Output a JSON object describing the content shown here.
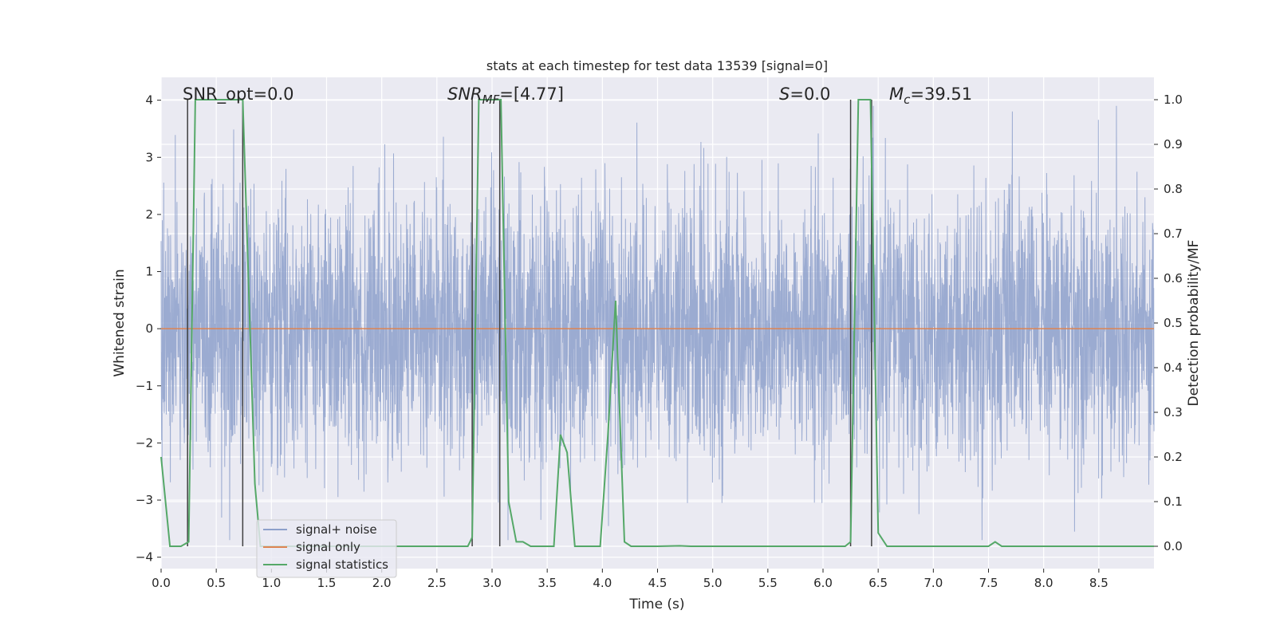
{
  "chart_data": {
    "type": "line",
    "title": "stats at each timestep for test data 13539 [signal=0]",
    "xlabel": "Time (s)",
    "ylabel_left": "Whitened strain",
    "ylabel_right": "Detection probability/MF",
    "xlim": [
      0.0,
      9.0
    ],
    "ylim_left": [
      -4.2,
      4.4
    ],
    "ylim_right": [
      -0.05,
      1.05
    ],
    "x_ticks": [
      "0.0",
      "0.5",
      "1.0",
      "1.5",
      "2.0",
      "2.5",
      "3.0",
      "3.5",
      "4.0",
      "4.5",
      "5.0",
      "5.5",
      "6.0",
      "6.5",
      "7.0",
      "7.5",
      "8.0",
      "8.5"
    ],
    "y_ticks_left": [
      "4",
      "3",
      "2",
      "1",
      "0",
      "−1",
      "−2",
      "−3",
      "−4"
    ],
    "y_ticks_right": [
      "1.0",
      "0.9",
      "0.8",
      "0.7",
      "0.6",
      "0.5",
      "0.4",
      "0.3",
      "0.2",
      "0.1",
      "0.0"
    ],
    "grid": true,
    "legend_position": "lower-left",
    "annotations": {
      "snr_opt": "SNR_opt=0.0",
      "snr_mf_name": "SNR",
      "snr_mf_sub": "MF",
      "snr_mf_rest": "=[4.77]",
      "s_name": "S",
      "s_rest": "=0.0",
      "mc_name": "M",
      "mc_sub": "c",
      "mc_rest": "=39.51"
    },
    "series": [
      {
        "name": "signal+ noise",
        "color": "#8da0cb",
        "kind": "whitened strain noise (≈3 s.d. spikes, range about −3.7 to 3.9)"
      },
      {
        "name": "signal only",
        "color": "#dd8452",
        "x": [
          0.0,
          9.0
        ],
        "y": [
          0.0,
          0.0
        ]
      },
      {
        "name": "signal statistics",
        "color": "#55a868",
        "x": [
          0.0,
          0.08,
          0.18,
          0.25,
          0.31,
          0.74,
          0.85,
          0.9,
          1.0,
          2.5,
          2.78,
          2.82,
          2.88,
          3.08,
          3.15,
          3.22,
          3.28,
          3.35,
          3.42,
          3.5,
          3.56,
          3.62,
          3.68,
          3.75,
          3.82,
          3.9,
          3.98,
          4.05,
          4.12,
          4.2,
          4.26,
          4.35,
          4.5,
          4.7,
          4.8,
          5.2,
          5.6,
          6.0,
          6.2,
          6.25,
          6.32,
          6.43,
          6.5,
          6.58,
          6.7,
          7.3,
          7.5,
          7.56,
          7.62,
          7.8,
          9.0
        ],
        "y": [
          0.2,
          0.0,
          0.0,
          0.01,
          1.0,
          1.0,
          0.14,
          0.0,
          0.0,
          0.0,
          0.0,
          0.02,
          1.0,
          1.0,
          0.1,
          0.01,
          0.01,
          0.0,
          0.0,
          0.0,
          0.0,
          0.25,
          0.21,
          0.0,
          0.0,
          0.0,
          0.0,
          0.25,
          0.55,
          0.01,
          0.0,
          0.0,
          0.0,
          0.001,
          0.0,
          0.0,
          0.0,
          0.0,
          0.0,
          0.01,
          1.0,
          1.0,
          0.03,
          0.0,
          0.0,
          0.0,
          0.0,
          0.01,
          0.0,
          0.0,
          0.0
        ]
      }
    ],
    "vertical_markers": {
      "color": "#404040",
      "x": [
        0.24,
        0.74,
        2.82,
        3.07,
        6.25,
        6.44
      ]
    }
  }
}
